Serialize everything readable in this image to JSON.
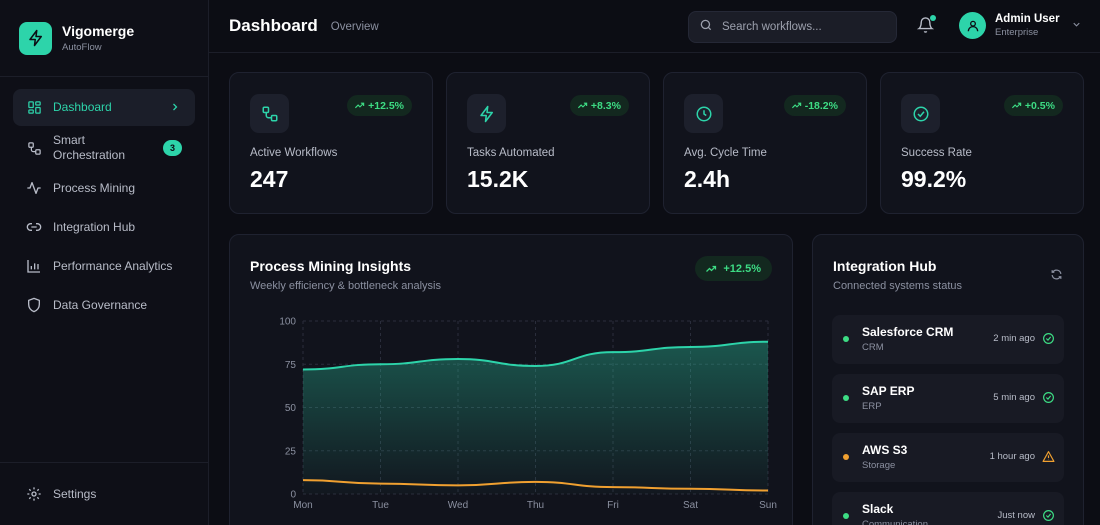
{
  "app": {
    "name": "Vigomerge",
    "subtitle": "AutoFlow"
  },
  "sidebar": {
    "items": [
      {
        "label": "Dashboard",
        "icon": "layout-grid-icon",
        "active": true
      },
      {
        "label": "Smart Orchestration",
        "icon": "workflow-icon",
        "badge": "3"
      },
      {
        "label": "Process Mining",
        "icon": "activity-icon"
      },
      {
        "label": "Integration Hub",
        "icon": "link-icon"
      },
      {
        "label": "Performance Analytics",
        "icon": "bar-chart-icon"
      },
      {
        "label": "Data Governance",
        "icon": "shield-icon"
      }
    ],
    "footer": {
      "label": "Settings",
      "icon": "gear-icon"
    }
  },
  "header": {
    "title": "Dashboard",
    "subtitle": "Overview",
    "search_placeholder": "Search workflows...",
    "user": {
      "name": "Admin User",
      "plan": "Enterprise"
    }
  },
  "stats": [
    {
      "label": "Active Workflows",
      "value": "247",
      "trend": "+12.5%",
      "icon": "workflow-icon"
    },
    {
      "label": "Tasks Automated",
      "value": "15.2K",
      "trend": "+8.3%",
      "icon": "lightning-icon"
    },
    {
      "label": "Avg. Cycle Time",
      "value": "2.4h",
      "trend": "-18.2%",
      "icon": "clock-icon"
    },
    {
      "label": "Success Rate",
      "value": "99.2%",
      "trend": "+0.5%",
      "icon": "check-circle-icon"
    }
  ],
  "process_panel": {
    "title": "Process Mining Insights",
    "subtitle": "Weekly efficiency & bottleneck analysis",
    "trend": "+12.5%"
  },
  "chart_data": {
    "type": "area",
    "categories": [
      "Mon",
      "Tue",
      "Wed",
      "Thu",
      "Fri",
      "Sat",
      "Sun"
    ],
    "series": [
      {
        "values": [
          72,
          75,
          78,
          74,
          82,
          85,
          88
        ],
        "color": "#2dd4aa"
      },
      {
        "values": [
          8,
          6,
          5,
          7,
          4,
          3,
          2
        ],
        "color": "#f0a030"
      }
    ],
    "yticks": [
      0,
      25,
      50,
      75,
      100
    ],
    "ylim": [
      0,
      100
    ],
    "grid": true
  },
  "integration_panel": {
    "title": "Integration Hub",
    "subtitle": "Connected systems status",
    "items": [
      {
        "name": "Salesforce CRM",
        "type": "CRM",
        "time": "2 min ago",
        "status": "ok",
        "color": "#3ddc84"
      },
      {
        "name": "SAP ERP",
        "type": "ERP",
        "time": "5 min ago",
        "status": "ok",
        "color": "#3ddc84"
      },
      {
        "name": "AWS S3",
        "type": "Storage",
        "time": "1 hour ago",
        "status": "warning",
        "color": "#f0a030"
      },
      {
        "name": "Slack",
        "type": "Communication",
        "time": "Just now",
        "status": "ok",
        "color": "#3ddc84"
      }
    ]
  },
  "colors": {
    "accent": "#2dd4aa",
    "success": "#3ddc84",
    "warning": "#f0a030",
    "background": "#0c0d14"
  }
}
